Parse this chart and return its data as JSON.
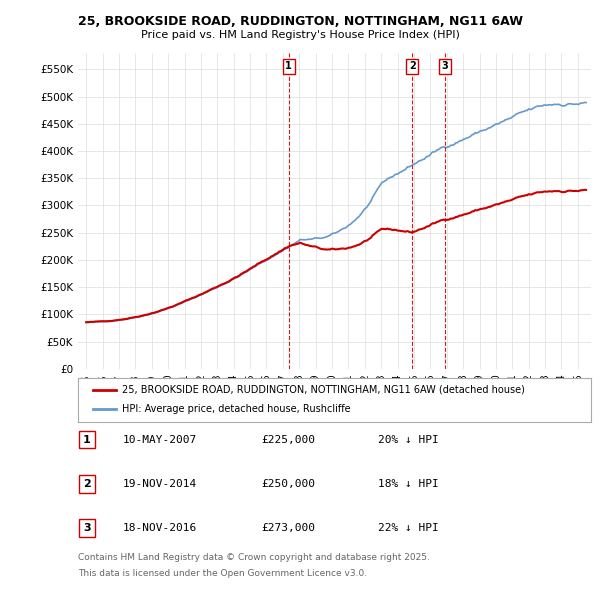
{
  "title": "25, BROOKSIDE ROAD, RUDDINGTON, NOTTINGHAM, NG11 6AW",
  "subtitle": "Price paid vs. HM Land Registry's House Price Index (HPI)",
  "y_ticks": [
    0,
    50000,
    100000,
    150000,
    200000,
    250000,
    300000,
    350000,
    400000,
    450000,
    500000,
    550000
  ],
  "y_tick_labels": [
    "£0",
    "£50K",
    "£100K",
    "£150K",
    "£200K",
    "£250K",
    "£300K",
    "£350K",
    "£400K",
    "£450K",
    "£500K",
    "£550K"
  ],
  "sale_color": "#cc0000",
  "hpi_color": "#6699cc",
  "sale_label": "25, BROOKSIDE ROAD, RUDDINGTON, NOTTINGHAM, NG11 6AW (detached house)",
  "hpi_label": "HPI: Average price, detached house, Rushcliffe",
  "transactions": [
    {
      "label": "1",
      "date": "10-MAY-2007",
      "price": "225,000",
      "pct": "20%",
      "direction": "↓",
      "x_year": 2007.36
    },
    {
      "label": "2",
      "date": "19-NOV-2014",
      "price": "250,000",
      "pct": "18%",
      "direction": "↓",
      "x_year": 2014.89
    },
    {
      "label": "3",
      "date": "18-NOV-2016",
      "price": "273,000",
      "pct": "22%",
      "direction": "↓",
      "x_year": 2016.89
    }
  ],
  "footer_lines": [
    "Contains HM Land Registry data © Crown copyright and database right 2025.",
    "This data is licensed under the Open Government Licence v3.0."
  ],
  "background_color": "#ffffff",
  "grid_color": "#dddddd",
  "ylim": [
    0,
    580000
  ],
  "xlim_start": 1994.5,
  "xlim_end": 2025.8
}
